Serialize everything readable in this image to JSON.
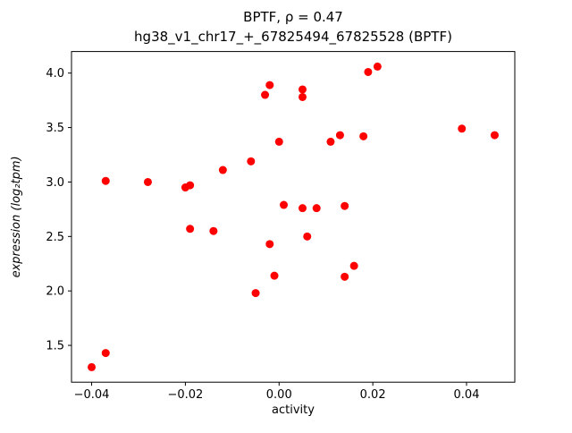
{
  "chart_data": {
    "type": "scatter",
    "title_line1": "BPTF, ρ = 0.47",
    "title_line2": "hg38_v1_chr17_+_67825494_67825528 (BPTF)",
    "xlabel": "activity",
    "ylabel": "expression (log₂tpm)",
    "marker_color": "#ff0000",
    "frame_color": "#000000",
    "legend": "none",
    "grid": false,
    "xlim": [
      -0.0443,
      0.0503
    ],
    "ylim": [
      1.162,
      4.198
    ],
    "x_tick_values": [
      -0.04,
      -0.02,
      0.0,
      0.02,
      0.04
    ],
    "x_tick_labels": [
      "−0.04",
      "−0.02",
      "0.00",
      "0.02",
      "0.04"
    ],
    "y_tick_values": [
      1.5,
      2.0,
      2.5,
      3.0,
      3.5,
      4.0
    ],
    "y_tick_labels": [
      "1.5",
      "2.0",
      "2.5",
      "3.0",
      "3.5",
      "4.0"
    ],
    "points": [
      [
        -0.04,
        1.3
      ],
      [
        -0.037,
        1.43
      ],
      [
        -0.037,
        3.01
      ],
      [
        -0.028,
        3.0
      ],
      [
        -0.02,
        2.95
      ],
      [
        -0.019,
        2.97
      ],
      [
        -0.019,
        2.57
      ],
      [
        -0.014,
        2.55
      ],
      [
        -0.012,
        3.11
      ],
      [
        -0.006,
        3.19
      ],
      [
        -0.005,
        1.98
      ],
      [
        -0.003,
        3.8
      ],
      [
        -0.002,
        3.89
      ],
      [
        -0.002,
        2.43
      ],
      [
        -0.001,
        2.14
      ],
      [
        0.0,
        3.37
      ],
      [
        0.001,
        2.79
      ],
      [
        0.005,
        3.85
      ],
      [
        0.005,
        3.78
      ],
      [
        0.005,
        2.76
      ],
      [
        0.006,
        2.5
      ],
      [
        0.008,
        2.76
      ],
      [
        0.011,
        3.37
      ],
      [
        0.013,
        3.43
      ],
      [
        0.014,
        2.78
      ],
      [
        0.014,
        2.13
      ],
      [
        0.016,
        2.23
      ],
      [
        0.018,
        3.42
      ],
      [
        0.019,
        4.01
      ],
      [
        0.021,
        4.06
      ],
      [
        0.039,
        3.49
      ],
      [
        0.046,
        3.43
      ]
    ]
  }
}
